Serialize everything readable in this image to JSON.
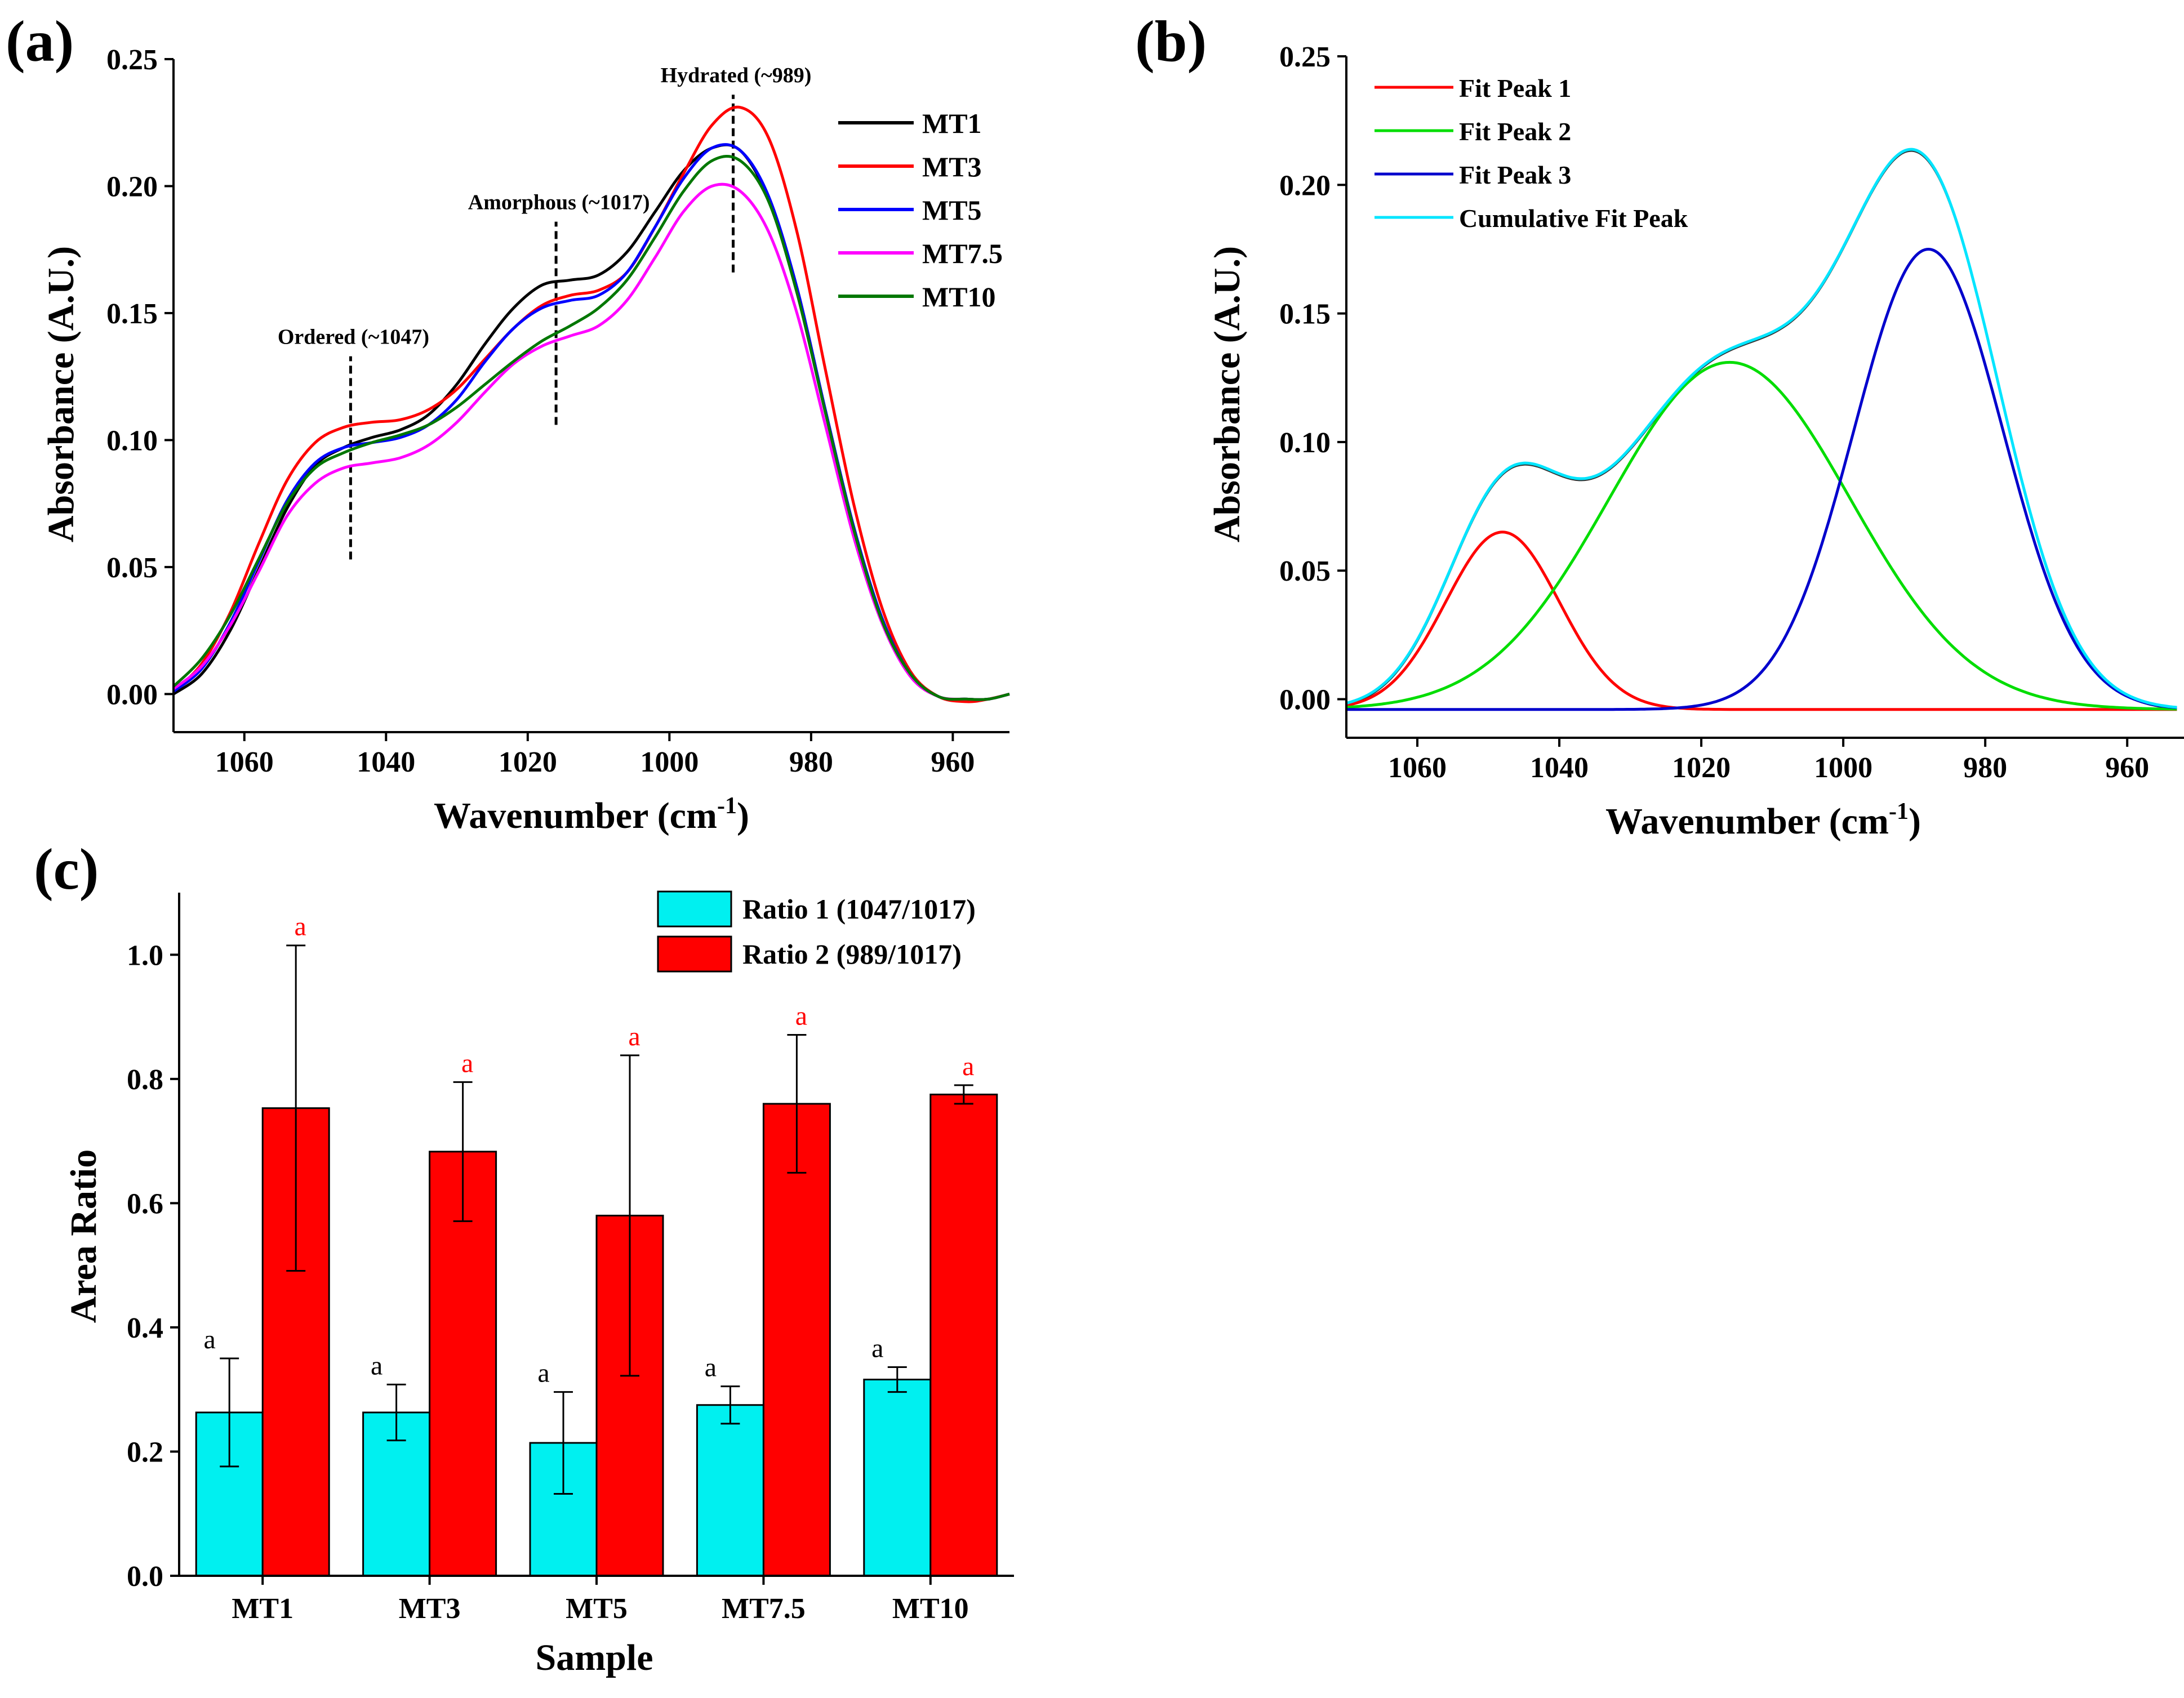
{
  "chart_data": [
    {
      "panel": "(a)",
      "type": "line",
      "xlabel": "Wavenumber (cm",
      "xlabel_sup": "-1",
      "xlabel_close": ")",
      "ylabel": "Absorbance (A.U.)",
      "xlim": [
        1070,
        952
      ],
      "ylim": [
        -0.015,
        0.25
      ],
      "xticks": [
        1060,
        1040,
        1020,
        1000,
        980,
        960
      ],
      "yticks": [
        "0.00",
        "0.05",
        "0.10",
        "0.15",
        "0.20",
        "0.25"
      ],
      "annotations": [
        {
          "text": "Ordered (~1047)",
          "x": 1045,
          "y_from": 0.053,
          "y_to": 0.133
        },
        {
          "text": "Amorphous (~1017)",
          "x": 1016,
          "y_from": 0.106,
          "y_to": 0.186
        },
        {
          "text": "Hydrated (~989)",
          "x": 991,
          "y_from": 0.166,
          "y_to": 0.236
        }
      ],
      "series": [
        {
          "name": "MT1",
          "color": "#000000",
          "x": [
            1070,
            1066,
            1062,
            1058,
            1054,
            1050,
            1046,
            1042,
            1038,
            1034,
            1030,
            1026,
            1022,
            1018,
            1014,
            1010,
            1006,
            1002,
            998,
            994,
            990,
            986,
            982,
            978,
            974,
            970,
            966,
            962,
            958,
            955,
            952
          ],
          "y": [
            0.0,
            0.008,
            0.025,
            0.049,
            0.073,
            0.09,
            0.097,
            0.101,
            0.104,
            0.11,
            0.122,
            0.138,
            0.152,
            0.161,
            0.163,
            0.165,
            0.174,
            0.19,
            0.206,
            0.215,
            0.214,
            0.195,
            0.16,
            0.112,
            0.066,
            0.03,
            0.008,
            -0.001,
            -0.002,
            -0.002,
            0.0
          ]
        },
        {
          "name": "MT3",
          "color": "#ff0000",
          "x": [
            1070,
            1066,
            1062,
            1058,
            1054,
            1050,
            1046,
            1042,
            1038,
            1034,
            1030,
            1026,
            1022,
            1018,
            1014,
            1010,
            1006,
            1002,
            998,
            994,
            990,
            986,
            982,
            978,
            974,
            970,
            966,
            962,
            958,
            955,
            952
          ],
          "y": [
            0.001,
            0.012,
            0.032,
            0.059,
            0.084,
            0.099,
            0.105,
            0.107,
            0.108,
            0.112,
            0.12,
            0.132,
            0.144,
            0.153,
            0.157,
            0.159,
            0.166,
            0.184,
            0.205,
            0.224,
            0.231,
            0.219,
            0.182,
            0.128,
            0.075,
            0.034,
            0.009,
            -0.001,
            -0.003,
            -0.002,
            0.0
          ]
        },
        {
          "name": "MT5",
          "color": "#0000ff",
          "x": [
            1070,
            1066,
            1062,
            1058,
            1054,
            1050,
            1046,
            1042,
            1038,
            1034,
            1030,
            1026,
            1022,
            1018,
            1014,
            1010,
            1006,
            1002,
            998,
            994,
            990,
            986,
            982,
            978,
            974,
            970,
            966,
            962,
            958,
            955,
            952
          ],
          "y": [
            0.001,
            0.01,
            0.028,
            0.052,
            0.076,
            0.091,
            0.097,
            0.099,
            0.101,
            0.106,
            0.116,
            0.131,
            0.144,
            0.152,
            0.155,
            0.157,
            0.166,
            0.184,
            0.203,
            0.215,
            0.214,
            0.196,
            0.16,
            0.112,
            0.066,
            0.03,
            0.008,
            -0.001,
            -0.002,
            -0.002,
            0.0
          ]
        },
        {
          "name": "MT7.5",
          "color": "#ff00ff",
          "x": [
            1070,
            1066,
            1062,
            1058,
            1054,
            1050,
            1046,
            1042,
            1038,
            1034,
            1030,
            1026,
            1022,
            1018,
            1014,
            1010,
            1006,
            1002,
            998,
            994,
            990,
            986,
            982,
            978,
            974,
            970,
            966,
            962,
            958,
            955,
            952
          ],
          "y": [
            0.002,
            0.011,
            0.027,
            0.048,
            0.07,
            0.083,
            0.089,
            0.091,
            0.093,
            0.098,
            0.107,
            0.119,
            0.13,
            0.137,
            0.141,
            0.145,
            0.155,
            0.172,
            0.19,
            0.2,
            0.198,
            0.182,
            0.15,
            0.106,
            0.062,
            0.028,
            0.007,
            -0.001,
            -0.002,
            -0.002,
            0.0
          ]
        },
        {
          "name": "MT10",
          "color": "#007700",
          "x": [
            1070,
            1066,
            1062,
            1058,
            1054,
            1050,
            1046,
            1042,
            1038,
            1034,
            1030,
            1026,
            1022,
            1018,
            1014,
            1010,
            1006,
            1002,
            998,
            994,
            990,
            986,
            982,
            978,
            974,
            970,
            966,
            962,
            958,
            955,
            952
          ],
          "y": [
            0.003,
            0.014,
            0.031,
            0.053,
            0.075,
            0.089,
            0.095,
            0.099,
            0.102,
            0.106,
            0.113,
            0.122,
            0.131,
            0.139,
            0.145,
            0.152,
            0.163,
            0.18,
            0.198,
            0.21,
            0.21,
            0.194,
            0.158,
            0.111,
            0.065,
            0.029,
            0.008,
            -0.001,
            -0.002,
            -0.002,
            0.0
          ]
        }
      ],
      "legend_position": "top-right"
    },
    {
      "panel": "(b)",
      "type": "line",
      "xlabel": "Wavenumber (cm",
      "xlabel_sup": "-1",
      "xlabel_close": ")",
      "ylabel": "Absorbance (A.U.)",
      "xlim": [
        1070,
        952
      ],
      "ylim": [
        -0.015,
        0.25
      ],
      "xticks": [
        1060,
        1040,
        1020,
        1000,
        980,
        960
      ],
      "yticks": [
        "0.00",
        "0.05",
        "0.10",
        "0.15",
        "0.20",
        "0.25"
      ],
      "baseline": -0.004,
      "peaks": [
        {
          "name": "Fit Peak 1",
          "color": "#ff0000",
          "center": 1048,
          "height": 0.069,
          "width": 8
        },
        {
          "name": "Fit Peak 2",
          "color": "#00dd00",
          "center": 1016,
          "height": 0.135,
          "width": 17
        },
        {
          "name": "Fit Peak 3",
          "color": "#0000cc",
          "center": 988,
          "height": 0.179,
          "width": 10.5
        }
      ],
      "cumulative": {
        "name": "Cumulative Fit Peak",
        "color": "#00e5ff"
      },
      "measured_color": "#333333",
      "legend_position": "top-left"
    },
    {
      "panel": "(c)",
      "type": "bar",
      "xlabel": "Sample",
      "ylabel": "Area Ratio",
      "ylim": [
        0,
        1.1
      ],
      "yticks": [
        "0.0",
        "0.2",
        "0.4",
        "0.6",
        "0.8",
        "1.0"
      ],
      "categories": [
        "MT1",
        "MT3",
        "MT5",
        "MT7.5",
        "MT10"
      ],
      "series": [
        {
          "name": "Ratio 1 (1047/1017)",
          "color": "#00f0f0",
          "values": [
            0.263,
            0.263,
            0.214,
            0.275,
            0.316
          ],
          "errors": [
            0.087,
            0.045,
            0.082,
            0.03,
            0.02
          ],
          "letters": [
            "a",
            "a",
            "a",
            "a",
            "a"
          ],
          "letter_color": "#000000"
        },
        {
          "name": "Ratio 2 (989/1017)",
          "color": "#ff0000",
          "values": [
            0.753,
            0.683,
            0.58,
            0.76,
            0.775
          ],
          "errors": [
            0.262,
            0.112,
            0.258,
            0.111,
            0.015
          ],
          "letters": [
            "a",
            "a",
            "a",
            "a",
            "a"
          ],
          "letter_color": "#ff0000"
        }
      ],
      "legend_position": "top-right"
    }
  ]
}
